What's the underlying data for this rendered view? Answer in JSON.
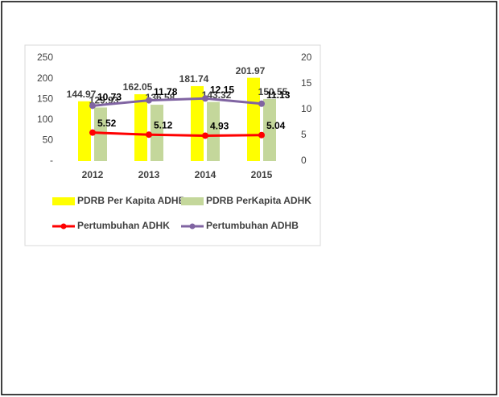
{
  "chart_data": {
    "type": "bar",
    "categories": [
      "2012",
      "2013",
      "2014",
      "2015"
    ],
    "series": [
      {
        "name": "PDRB Per Kapita ADHB",
        "type": "bar",
        "color": "#ffff00",
        "values": [
          144.97,
          162.05,
          181.74,
          201.97
        ]
      },
      {
        "name": "PDRB PerKapita ADHK",
        "type": "bar",
        "color": "#c4d79b",
        "values": [
          129.93,
          136.58,
          143.32,
          150.55
        ]
      },
      {
        "name": "Pertumbuhan ADHK",
        "type": "line",
        "axis": "y2",
        "color": "#ff0000",
        "values": [
          5.52,
          5.12,
          4.93,
          5.04
        ]
      },
      {
        "name": "Pertumbuhan ADHB",
        "type": "line",
        "axis": "y2",
        "color": "#8064a2",
        "values": [
          10.73,
          11.78,
          12.15,
          11.13
        ]
      }
    ],
    "ylim": [
      0,
      250
    ],
    "yticks": [
      {
        "value": 0,
        "label": "-"
      },
      50,
      100,
      150,
      200,
      250
    ],
    "y2lim": [
      0,
      20
    ],
    "y2ticks": [
      0,
      5,
      10,
      15,
      20
    ]
  }
}
